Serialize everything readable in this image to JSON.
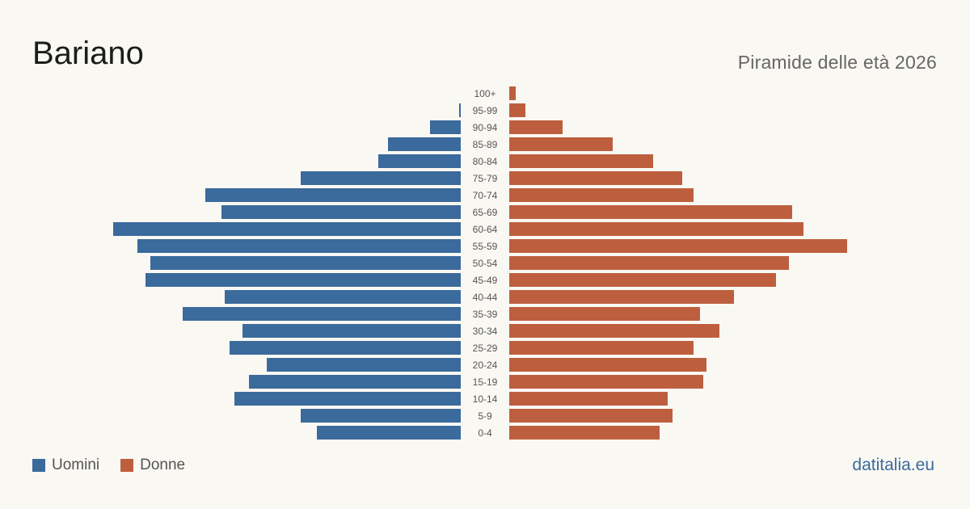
{
  "header": {
    "title": "Bariano",
    "subtitle": "Piramide delle età 2026"
  },
  "legend": {
    "men_label": "Uomini",
    "women_label": "Donne"
  },
  "brand": "datitalia.eu",
  "colors": {
    "men": "#3b6a9c",
    "women": "#bd5f3e",
    "background": "#faf8f3",
    "age_label": "#555555"
  },
  "chart_data": {
    "type": "bar",
    "orientation": "horizontal-pyramid",
    "categories": [
      "100+",
      "95-99",
      "90-94",
      "85-89",
      "80-84",
      "75-79",
      "70-74",
      "65-69",
      "60-64",
      "55-59",
      "50-54",
      "45-49",
      "40-44",
      "35-39",
      "30-34",
      "25-29",
      "20-24",
      "15-19",
      "10-14",
      "5-9",
      "0-4"
    ],
    "series": [
      {
        "name": "Uomini",
        "values": [
          0,
          1,
          19,
          45,
          51,
          99,
          158,
          148,
          215,
          200,
          192,
          195,
          146,
          172,
          135,
          143,
          120,
          131,
          140,
          99,
          89
        ]
      },
      {
        "name": "Donne",
        "values": [
          4,
          10,
          33,
          64,
          89,
          107,
          114,
          175,
          182,
          209,
          173,
          165,
          139,
          118,
          130,
          114,
          122,
          120,
          98,
          101,
          93
        ]
      }
    ],
    "xlim": [
      0,
      215
    ],
    "grid": false,
    "legend_position": "bottom-left"
  }
}
